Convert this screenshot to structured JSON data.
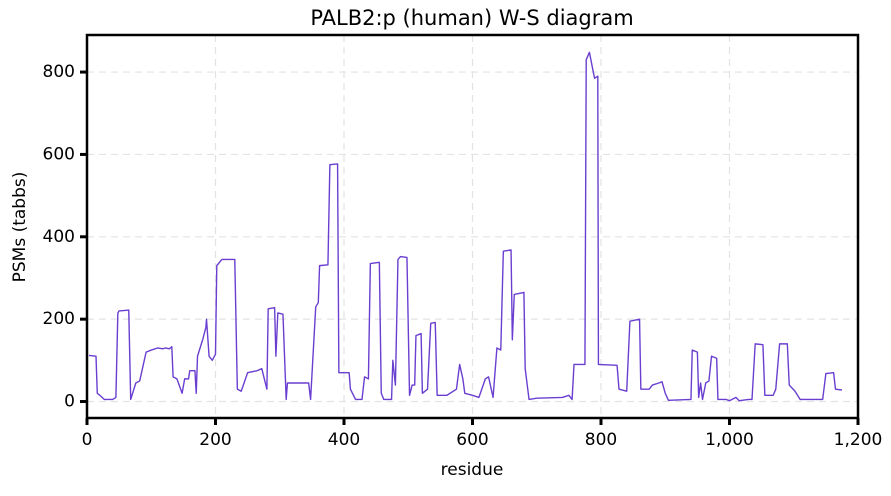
{
  "chart_data": {
    "type": "line",
    "title": "PALB2:p (human) W-S diagram",
    "xlabel": "residue",
    "ylabel": "PSMs (tabbs)",
    "color": "#6a3fd0",
    "grid": true,
    "xlim": [
      0,
      1200
    ],
    "ylim": [
      -40,
      890
    ],
    "xticks": [
      0,
      200,
      400,
      600,
      800,
      {
        "value": 1000,
        "label": "1,000"
      },
      {
        "value": 1200,
        "label": "1,200"
      }
    ],
    "yticks": [
      0,
      200,
      400,
      600,
      800
    ],
    "x": [
      3,
      14,
      16,
      20,
      27,
      40,
      45,
      48,
      50,
      65,
      68,
      76,
      82,
      92,
      100,
      110,
      118,
      122,
      128,
      132,
      134,
      140,
      148,
      152,
      158,
      160,
      168,
      170,
      172,
      180,
      185,
      186,
      190,
      195,
      200,
      202,
      210,
      230,
      234,
      240,
      250,
      265,
      272,
      280,
      282,
      292,
      294,
      297,
      305,
      310,
      312,
      345,
      348,
      356,
      360,
      362,
      375,
      378,
      390,
      392,
      408,
      410,
      418,
      428,
      432,
      438,
      441,
      455,
      458,
      462,
      474,
      476,
      480,
      484,
      488,
      498,
      502,
      506,
      510,
      512,
      520,
      522,
      530,
      535,
      542,
      545,
      560,
      575,
      580,
      585,
      588,
      600,
      610,
      620,
      625,
      632,
      638,
      644,
      648,
      660,
      662,
      665,
      680,
      682,
      688,
      700,
      740,
      750,
      755,
      758,
      775,
      777,
      782,
      788,
      790,
      795,
      796,
      825,
      828,
      840,
      845,
      860,
      862,
      875,
      880,
      890,
      895,
      900,
      905,
      940,
      942,
      950,
      952,
      955,
      958,
      963,
      968,
      972,
      980,
      982,
      995,
      1000,
      1010,
      1015,
      1030,
      1035,
      1040,
      1052,
      1055,
      1068,
      1072,
      1078,
      1090,
      1093,
      1102,
      1110,
      1145,
      1150,
      1162,
      1165,
      1175
    ],
    "values": [
      112,
      110,
      20,
      15,
      5,
      5,
      10,
      215,
      220,
      222,
      5,
      45,
      50,
      120,
      125,
      130,
      128,
      130,
      128,
      133,
      60,
      55,
      20,
      55,
      55,
      75,
      75,
      20,
      110,
      150,
      180,
      200,
      110,
      100,
      115,
      330,
      345,
      345,
      30,
      25,
      70,
      75,
      80,
      30,
      225,
      228,
      110,
      215,
      212,
      5,
      45,
      45,
      5,
      230,
      240,
      330,
      332,
      575,
      577,
      70,
      70,
      30,
      5,
      5,
      60,
      55,
      335,
      338,
      20,
      5,
      5,
      100,
      40,
      345,
      352,
      350,
      15,
      40,
      40,
      160,
      165,
      20,
      30,
      190,
      192,
      15,
      15,
      30,
      90,
      55,
      20,
      15,
      10,
      55,
      60,
      10,
      130,
      125,
      365,
      368,
      150,
      260,
      265,
      80,
      5,
      8,
      10,
      15,
      5,
      90,
      90,
      830,
      848,
      800,
      785,
      790,
      90,
      88,
      30,
      25,
      195,
      200,
      30,
      30,
      40,
      45,
      48,
      20,
      3,
      5,
      125,
      120,
      10,
      45,
      5,
      45,
      50,
      110,
      105,
      5,
      5,
      2,
      10,
      2,
      5,
      5,
      140,
      138,
      15,
      15,
      30,
      140,
      140,
      40,
      25,
      5,
      5,
      68,
      70,
      30,
      28
    ]
  }
}
